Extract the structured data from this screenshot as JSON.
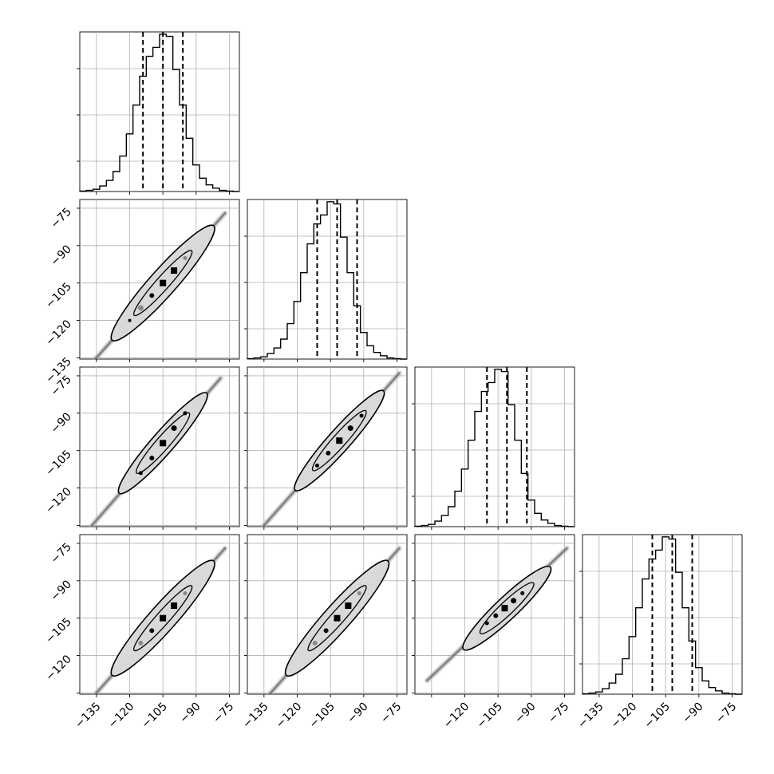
{
  "figure": {
    "type": "corner-plot"
  },
  "colors": {
    "line": "#000000",
    "grid": "#b0b0b0",
    "contour_fill": "#d9d9d9",
    "points": "#000000",
    "background": "#ffffff"
  },
  "chart_data": [
    {
      "type": "bar",
      "panel": "hist-0",
      "row": 0,
      "col": 0,
      "categories": [
        -141.0,
        -138.0,
        -135.0,
        -132.0,
        -129.0,
        -126.0,
        -123.0,
        -120.0,
        -117.0,
        -114.0,
        -111.0,
        -108.0,
        -105.0,
        -102.0,
        -99.0,
        -96.0,
        -93.0,
        -90.0,
        -87.0,
        -84.0,
        -81.0,
        -78.0,
        -75.0,
        -72.0
      ],
      "values": [
        0.2,
        0.5,
        1,
        2.5,
        5,
        9,
        16,
        26,
        39,
        52,
        61,
        65,
        71,
        70,
        55,
        39,
        24,
        12,
        6,
        3,
        1.5,
        0.5,
        0.2,
        0
      ],
      "bin_width": 3,
      "xlim": [
        -142.5,
        -70.5
      ],
      "ylim": [
        0,
        72
      ],
      "quantiles": [
        -114.0,
        -105.0,
        -96.0
      ],
      "grid": true
    },
    {
      "type": "bar",
      "panel": "hist-1",
      "row": 1,
      "col": 1,
      "categories": [
        -141.0,
        -138.0,
        -135.0,
        -132.0,
        -129.0,
        -126.0,
        -123.0,
        -120.0,
        -117.0,
        -114.0,
        -111.0,
        -108.0,
        -105.0,
        -102.0,
        -99.0,
        -96.0,
        -93.0,
        -90.0,
        -87.0,
        -84.0,
        -81.0,
        -78.0,
        -75.0,
        -72.0
      ],
      "values": [
        0.2,
        0.5,
        1,
        2.5,
        5,
        9,
        16,
        26,
        39,
        52,
        61,
        65,
        71,
        70,
        55,
        39,
        24,
        12,
        6,
        3,
        1.5,
        0.5,
        0.2,
        0
      ],
      "bin_width": 3,
      "xlim": [
        -142.5,
        -70.5
      ],
      "ylim": [
        0,
        72
      ],
      "quantiles": [
        -111.0,
        -102.0,
        -93.0
      ],
      "grid": true
    },
    {
      "type": "bar",
      "panel": "hist-2",
      "row": 2,
      "col": 2,
      "categories": [
        -141.0,
        -138.0,
        -135.0,
        -132.0,
        -129.0,
        -126.0,
        -123.0,
        -120.0,
        -117.0,
        -114.0,
        -111.0,
        -108.0,
        -105.0,
        -102.0,
        -99.0,
        -96.0,
        -93.0,
        -90.0,
        -87.0,
        -84.0,
        -81.0,
        -78.0,
        -75.0,
        -72.0
      ],
      "values": [
        0.2,
        0.5,
        1,
        2.5,
        5,
        9,
        16,
        26,
        39,
        52,
        61,
        65,
        71,
        70,
        55,
        39,
        24,
        12,
        6,
        3,
        1.5,
        0.5,
        0.2,
        0
      ],
      "bin_width": 3,
      "xlim": [
        -142.5,
        -70.5
      ],
      "ylim": [
        0,
        72
      ],
      "quantiles": [
        -110.0,
        -101.0,
        -92.0
      ],
      "grid": true
    },
    {
      "type": "bar",
      "panel": "hist-3",
      "row": 3,
      "col": 3,
      "categories": [
        -141.0,
        -138.0,
        -135.0,
        -132.0,
        -129.0,
        -126.0,
        -123.0,
        -120.0,
        -117.0,
        -114.0,
        -111.0,
        -108.0,
        -105.0,
        -102.0,
        -99.0,
        -96.0,
        -93.0,
        -90.0,
        -87.0,
        -84.0,
        -81.0,
        -78.0,
        -75.0,
        -72.0
      ],
      "values": [
        0.2,
        0.5,
        1,
        2.5,
        5,
        9,
        16,
        26,
        39,
        52,
        61,
        65,
        71,
        70,
        55,
        39,
        24,
        12,
        6,
        3,
        1.5,
        0.5,
        0.2,
        0
      ],
      "bin_width": 3,
      "xlim": [
        -142.5,
        -70.5
      ],
      "ylim": [
        0,
        72
      ],
      "quantiles": [
        -111.0,
        -102.0,
        -93.0
      ],
      "grid": true
    },
    {
      "type": "scatter",
      "panel": "scatter-1-0",
      "row": 1,
      "col": 0,
      "x": [
        -120,
        -115,
        -110,
        -105,
        -100,
        -95
      ],
      "y": [
        -120,
        -115,
        -110,
        -105,
        -100,
        -95
      ],
      "point_colors": [
        "#000000",
        "#888888",
        "#000000",
        "#000000",
        "#000000",
        "#888888"
      ],
      "point_sizes": [
        2,
        5,
        4,
        6,
        6,
        3
      ],
      "trend": {
        "x": [
          -136,
          -77
        ],
        "y": [
          -136,
          -77
        ]
      },
      "contour": {
        "center": [
          -105,
          -105
        ],
        "length": 46,
        "width": 6,
        "inner_length": 26,
        "inner_width": 3
      },
      "xlim": [
        -142.5,
        -70.5
      ],
      "ylim": [
        -135.5,
        -71.5
      ],
      "grid": true
    },
    {
      "type": "scatter",
      "panel": "scatter-2-0",
      "row": 2,
      "col": 0,
      "x": [
        -115,
        -110,
        -105,
        -100,
        -95
      ],
      "y": [
        -114,
        -108,
        -102,
        -96,
        -90
      ],
      "point_colors": [
        "#000000",
        "#000000",
        "#000000",
        "#000000",
        "#000000"
      ],
      "point_sizes": [
        3,
        4,
        6,
        5,
        3
      ],
      "trend": {
        "x": [
          -137,
          -79
        ],
        "y": [
          -135,
          -76
        ]
      },
      "contour": {
        "center": [
          -105,
          -102
        ],
        "length": 40,
        "width": 5,
        "inner_length": 24,
        "inner_width": 3
      },
      "xlim": [
        -142.5,
        -70.5
      ],
      "ylim": [
        -135.5,
        -71.5
      ],
      "grid": true
    },
    {
      "type": "scatter",
      "panel": "scatter-2-1",
      "row": 2,
      "col": 1,
      "x": [
        -111,
        -106,
        -101,
        -96,
        -91
      ],
      "y": [
        -111,
        -106,
        -101,
        -96,
        -91
      ],
      "point_colors": [
        "#000000",
        "#000000",
        "#000000",
        "#000000",
        "#000000"
      ],
      "point_sizes": [
        3,
        4,
        6,
        5,
        3
      ],
      "trend": {
        "x": [
          -135,
          -74
        ],
        "y": [
          -135,
          -74
        ]
      },
      "contour": {
        "center": [
          -101,
          -101
        ],
        "length": 40,
        "width": 5,
        "inner_length": 24,
        "inner_width": 3
      },
      "xlim": [
        -142.5,
        -70.5
      ],
      "ylim": [
        -135.5,
        -71.5
      ],
      "grid": true
    },
    {
      "type": "scatter",
      "panel": "scatter-3-0",
      "row": 3,
      "col": 0,
      "x": [
        -115,
        -110,
        -105,
        -100,
        -95
      ],
      "y": [
        -115,
        -110,
        -105,
        -100,
        -95
      ],
      "point_colors": [
        "#888888",
        "#000000",
        "#000000",
        "#000000",
        "#888888"
      ],
      "point_sizes": [
        4,
        4,
        6,
        6,
        3
      ],
      "trend": {
        "x": [
          -136,
          -77
        ],
        "y": [
          -136,
          -77
        ]
      },
      "contour": {
        "center": [
          -105,
          -105
        ],
        "length": 46,
        "width": 6,
        "inner_length": 26,
        "inner_width": 3
      },
      "xlim": [
        -142.5,
        -70.5
      ],
      "ylim": [
        -135.5,
        -71.5
      ],
      "grid": true
    },
    {
      "type": "scatter",
      "panel": "scatter-3-1",
      "row": 3,
      "col": 1,
      "x": [
        -112,
        -107,
        -102,
        -97,
        -92
      ],
      "y": [
        -115,
        -110,
        -105,
        -100,
        -95
      ],
      "point_colors": [
        "#888888",
        "#000000",
        "#000000",
        "#000000",
        "#888888"
      ],
      "point_sizes": [
        4,
        4,
        6,
        6,
        3
      ],
      "trend": {
        "x": [
          -133,
          -74
        ],
        "y": [
          -136,
          -77
        ]
      },
      "contour": {
        "center": [
          -102,
          -105
        ],
        "length": 46,
        "width": 6,
        "inner_length": 26,
        "inner_width": 3
      },
      "xlim": [
        -142.5,
        -70.5
      ],
      "ylim": [
        -135.5,
        -71.5
      ],
      "grid": true
    },
    {
      "type": "scatter",
      "panel": "scatter-3-2",
      "row": 3,
      "col": 2,
      "x": [
        -110,
        -106,
        -102,
        -98,
        -94
      ],
      "y": [
        -107,
        -104,
        -101,
        -98,
        -95
      ],
      "point_colors": [
        "#000000",
        "#000000",
        "#000000",
        "#000000",
        "#000000"
      ],
      "point_sizes": [
        3,
        4,
        6,
        5,
        3
      ],
      "trend": {
        "x": [
          -137,
          -74
        ],
        "y": [
          -130,
          -77
        ]
      },
      "contour": {
        "center": [
          -101,
          -101
        ],
        "length": 36,
        "width": 5,
        "inner_length": 22,
        "inner_width": 3
      },
      "xlim": [
        -142.5,
        -70.5
      ],
      "ylim": [
        -135.5,
        -71.5
      ],
      "grid": true
    }
  ],
  "axes": {
    "x_tick_values": [
      -135,
      -120,
      -105,
      -90,
      -75
    ],
    "x_tick_labels": [
      "−135",
      "−120",
      "−105",
      "−90",
      "−75"
    ],
    "y_tick_values": [
      -75,
      -90,
      -105,
      -120,
      -135
    ],
    "y_tick_labels": [
      "−75",
      "−90",
      "−105",
      "−120",
      "−135"
    ]
  }
}
